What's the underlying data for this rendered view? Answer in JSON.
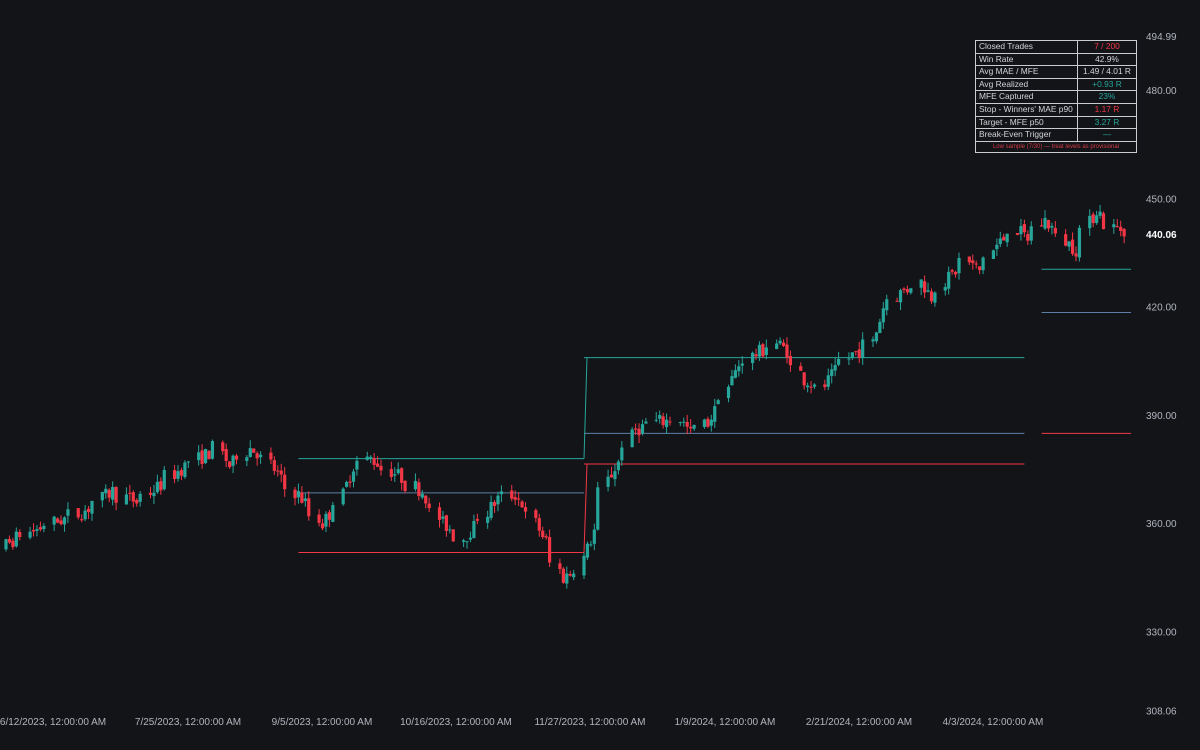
{
  "chart_data": {
    "type": "candlestick",
    "y_axis": {
      "range": [
        308.06,
        494.99
      ],
      "ticks": [
        "494.99",
        "480.00",
        "450.00",
        "420.00",
        "390.00",
        "360.00",
        "330.00",
        "308.06"
      ],
      "last_price": "440.06"
    },
    "x_axis": {
      "ticks": [
        "6/12/2023, 12:00:00 AM",
        "7/25/2023, 12:00:00 AM",
        "9/5/2023, 12:00:00 AM",
        "10/16/2023, 12:00:00 AM",
        "11/27/2023, 12:00:00 AM",
        "1/9/2024, 12:00:00 AM",
        "2/21/2024, 12:00:00 AM",
        "4/3/2024, 12:00:00 AM"
      ]
    },
    "colors": {
      "up": "#26a69a",
      "down": "#f23645",
      "entry": "#5b7fa8",
      "background": "#131418"
    },
    "trade_levels": [
      {
        "from": "2023-09-05",
        "to": "2023-11-27",
        "target": 378.0,
        "entry": 368.5,
        "stop": 352.0
      },
      {
        "from": "2023-11-27",
        "to": "2024-04-03",
        "target": 406.0,
        "entry": 385.0,
        "stop": 376.5
      },
      {
        "from": "2024-04-08",
        "to": "2024-05-04",
        "target": 430.5,
        "entry": 418.5,
        "stop": 385.0
      }
    ],
    "anchors": [
      [
        "2023-05-29",
        341
      ],
      [
        "2023-06-05",
        349
      ],
      [
        "2023-06-16",
        356
      ],
      [
        "2023-06-26",
        360
      ],
      [
        "2023-07-05",
        363
      ],
      [
        "2023-07-14",
        369
      ],
      [
        "2023-07-21",
        366
      ],
      [
        "2023-07-27",
        370
      ],
      [
        "2023-08-04",
        376
      ],
      [
        "2023-08-10",
        379
      ],
      [
        "2023-08-14",
        381
      ],
      [
        "2023-08-17",
        376
      ],
      [
        "2023-08-23",
        381
      ],
      [
        "2023-08-28",
        378
      ],
      [
        "2023-09-01",
        372
      ],
      [
        "2023-09-06",
        368
      ],
      [
        "2023-09-13",
        360
      ],
      [
        "2023-09-19",
        368
      ],
      [
        "2023-09-22",
        376
      ],
      [
        "2023-09-27",
        378
      ],
      [
        "2023-10-04",
        374
      ],
      [
        "2023-10-12",
        369
      ],
      [
        "2023-10-18",
        360
      ],
      [
        "2023-10-24",
        356
      ],
      [
        "2023-10-30",
        362
      ],
      [
        "2023-11-03",
        367
      ],
      [
        "2023-11-08",
        368
      ],
      [
        "2023-11-13",
        362
      ],
      [
        "2023-11-17",
        355
      ],
      [
        "2023-11-22",
        345
      ],
      [
        "2023-11-27",
        348
      ],
      [
        "2023-12-01",
        358
      ],
      [
        "2023-12-05",
        372
      ],
      [
        "2023-12-08",
        377
      ],
      [
        "2023-12-13",
        386
      ],
      [
        "2023-12-18",
        388
      ],
      [
        "2023-12-26",
        389
      ],
      [
        "2023-12-29",
        385
      ],
      [
        "2024-01-03",
        388
      ],
      [
        "2024-01-08",
        396
      ],
      [
        "2024-01-12",
        404
      ],
      [
        "2024-01-17",
        407
      ],
      [
        "2024-01-23",
        410
      ],
      [
        "2024-01-26",
        408
      ],
      [
        "2024-01-31",
        400
      ],
      [
        "2024-02-05",
        397
      ],
      [
        "2024-02-09",
        402
      ],
      [
        "2024-02-14",
        407
      ],
      [
        "2024-02-20",
        410
      ],
      [
        "2024-02-23",
        420
      ],
      [
        "2024-02-28",
        424
      ],
      [
        "2024-03-05",
        427
      ],
      [
        "2024-03-08",
        423
      ],
      [
        "2024-03-13",
        428
      ],
      [
        "2024-03-18",
        433
      ],
      [
        "2024-03-22",
        430
      ],
      [
        "2024-03-27",
        437
      ],
      [
        "2024-04-01",
        442
      ],
      [
        "2024-04-05",
        439
      ],
      [
        "2024-04-10",
        444
      ],
      [
        "2024-04-15",
        439
      ],
      [
        "2024-04-19",
        436
      ],
      [
        "2024-04-25",
        447
      ],
      [
        "2024-04-30",
        442
      ],
      [
        "2024-05-06",
        441
      ],
      [
        "2024-05-13",
        436
      ],
      [
        "2024-05-18",
        447
      ],
      [
        "2024-05-23",
        442
      ],
      [
        "2024-05-30",
        430
      ],
      [
        "2024-06-04",
        421
      ],
      [
        "2024-06-08",
        428
      ],
      [
        "2024-06-13",
        423
      ],
      [
        "2024-06-18",
        430
      ],
      [
        "2024-06-22",
        428
      ],
      [
        "2024-06-28",
        423
      ],
      [
        "2024-07-03",
        433
      ],
      [
        "2024-07-07",
        440
      ]
    ]
  },
  "stats": {
    "rows": [
      {
        "label": "Closed Trades",
        "value": "7 / 200",
        "color": "#f23645"
      },
      {
        "label": "Win Rate",
        "value": "42.9%",
        "color": "#d1d4dc"
      },
      {
        "label": "Avg MAE / MFE",
        "value": "1.49 / 4.01 R",
        "color": "#d1d4dc"
      },
      {
        "label": "Avg Realized",
        "value": "+0.93 R",
        "color": "#26a69a"
      },
      {
        "label": "MFE Captured",
        "value": "23%",
        "color": "#26a69a"
      },
      {
        "label": "Stop - Winners' MAE p90",
        "value": "1.17 R",
        "color": "#f23645"
      },
      {
        "label": "Target - MFE p50",
        "value": "3.27 R",
        "color": "#26a69a"
      },
      {
        "label": "Break-Even Trigger",
        "value": "—",
        "color": "#26a69a"
      }
    ],
    "note": "Low sample (7/30) — treat levels as provisional"
  }
}
